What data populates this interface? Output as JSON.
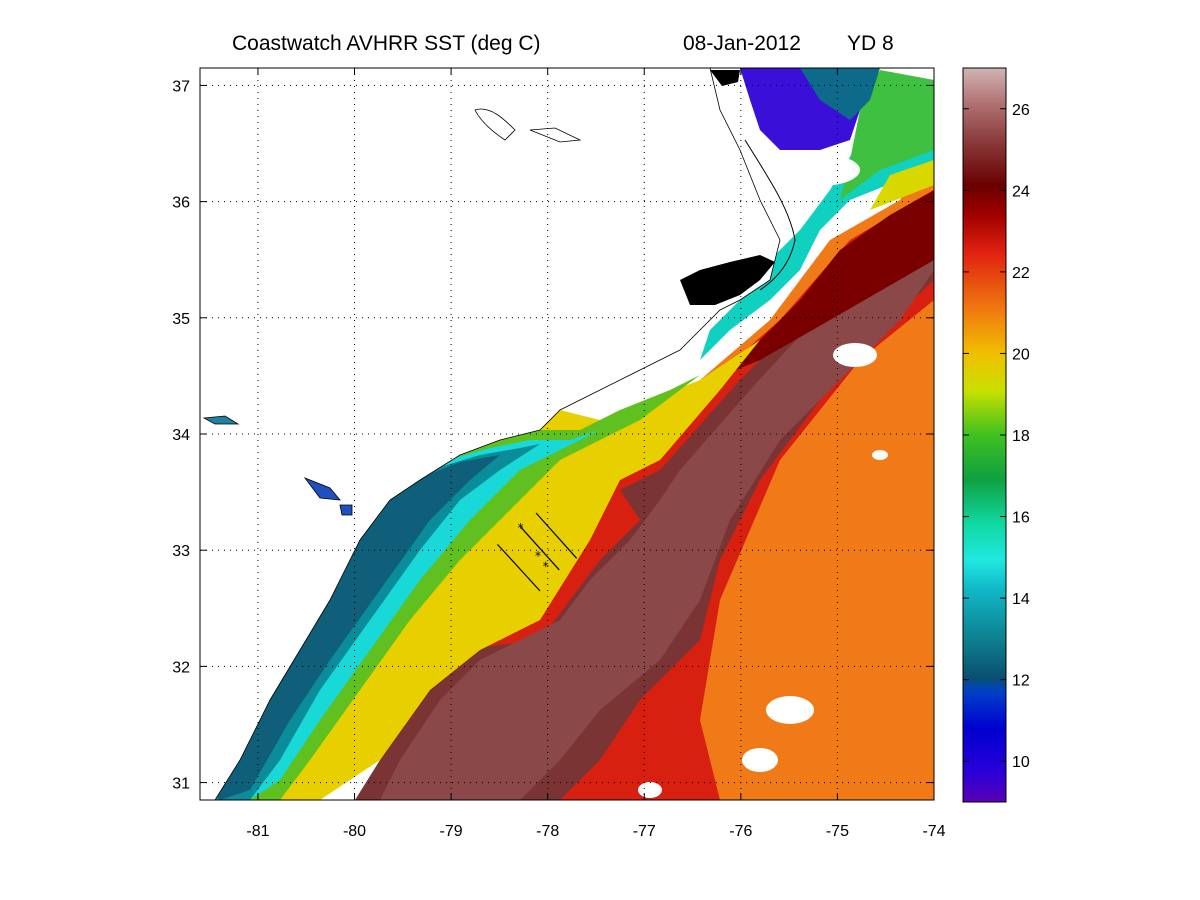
{
  "title": {
    "product": "Coastwatch   AVHRR   SST  (deg C)",
    "date": "08-Jan-2012",
    "yearday": "YD 8"
  },
  "map": {
    "lon_range": [
      -81.6,
      -74.0
    ],
    "lat_range": [
      30.85,
      37.15
    ],
    "x_ticks": [
      -81,
      -80,
      -79,
      -78,
      -77,
      -76,
      -75,
      -74
    ],
    "x_tick_labels": [
      "-81",
      "-80",
      "-79",
      "-78",
      "-77",
      "-76",
      "-75",
      "-74"
    ],
    "y_ticks": [
      31,
      32,
      33,
      34,
      35,
      36,
      37
    ],
    "y_tick_labels": [
      "31",
      "32",
      "33",
      "34",
      "35",
      "36",
      "37"
    ],
    "grid": "dotted",
    "land_color": "#ffffff",
    "cloud_color": "#ffffff",
    "coastline_color": "#000000",
    "transect_lines": [
      {
        "from": [
          -78.52,
          33.05
        ],
        "to": [
          -78.08,
          32.65
        ]
      },
      {
        "from": [
          -78.28,
          33.2
        ],
        "to": [
          -77.88,
          32.83
        ]
      },
      {
        "from": [
          -78.12,
          33.32
        ],
        "to": [
          -77.7,
          32.93
        ]
      }
    ],
    "stations": [
      [
        -78.28,
        33.19
      ],
      [
        -78.1,
        32.95
      ],
      [
        -78.02,
        32.86
      ]
    ]
  },
  "colorbar": {
    "label_values": [
      10,
      12,
      14,
      16,
      18,
      20,
      22,
      24,
      26
    ],
    "labels": [
      "10",
      "12",
      "14",
      "16",
      "18",
      "20",
      "22",
      "24",
      "26"
    ],
    "range": [
      9,
      27
    ],
    "stops": [
      "#5a00b4",
      "#0000d0",
      "#0040c8",
      "#0f6f8a",
      "#10aab0",
      "#20e0e0",
      "#10d880",
      "#10a040",
      "#40c020",
      "#d0e000",
      "#f0b000",
      "#f07010",
      "#e01010",
      "#a00000",
      "#6a0000",
      "#8a3a3a",
      "#b07070",
      "#d0b4b4"
    ]
  }
}
